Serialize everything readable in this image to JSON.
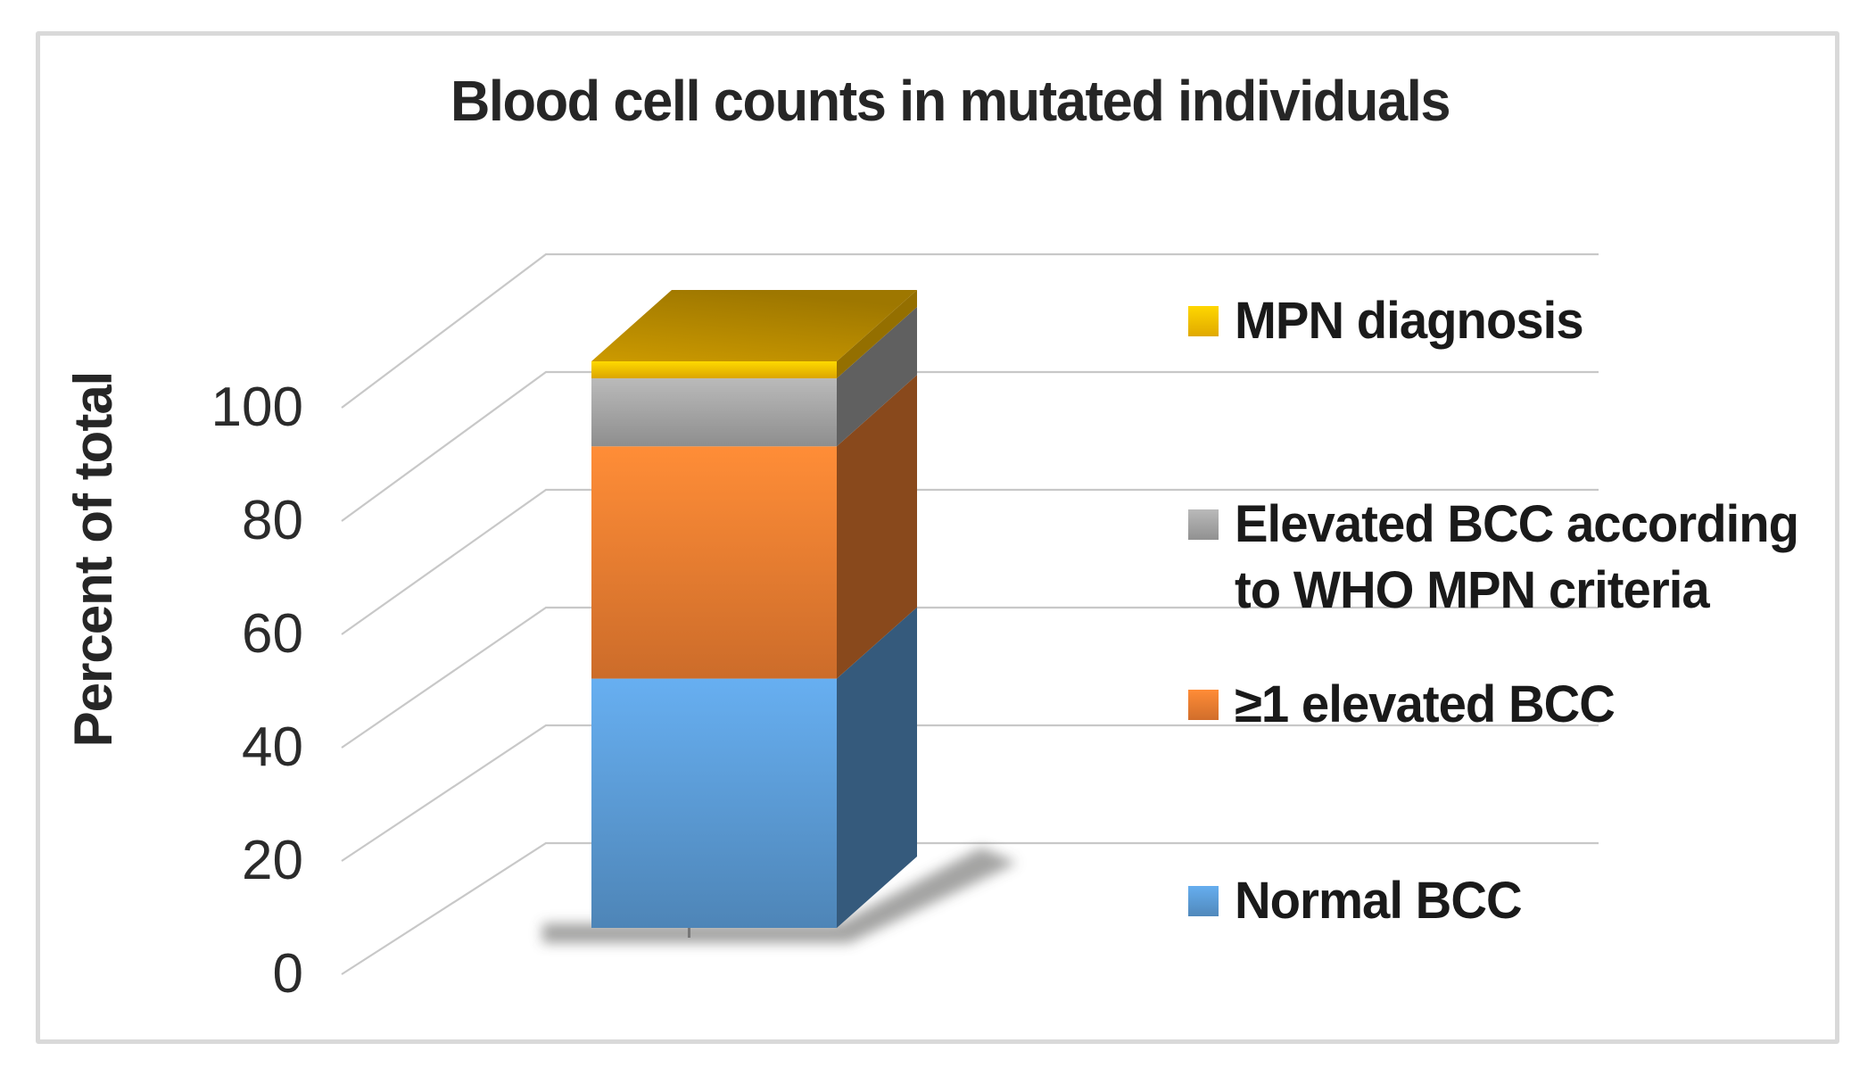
{
  "chart_title": "Blood cell counts in mutated individuals",
  "y_axis": {
    "title": "Percent of total",
    "tick_labels": [
      "0",
      "20",
      "40",
      "60",
      "80",
      "100"
    ],
    "tick_values": [
      0,
      20,
      40,
      60,
      80,
      100
    ]
  },
  "legend": {
    "position": "right",
    "items": [
      {
        "label": "MPN diagnosis",
        "lines": [
          "MPN diagnosis"
        ],
        "color": "#FFC000"
      },
      {
        "label": "Elevated BCC according to WHO MPN criteria",
        "lines": [
          "Elevated BCC according",
          "to WHO MPN criteria"
        ],
        "color": "#A5A5A5"
      },
      {
        "label": "≥1 elevated BCC",
        "lines": [
          "≥1 elevated BCC"
        ],
        "color": "#ED7D31"
      },
      {
        "label": "Normal BCC",
        "lines": [
          "Normal BCC"
        ],
        "color": "#5B9BD5"
      }
    ]
  },
  "chart_data": {
    "type": "bar",
    "subtype": "3d-stacked-column",
    "title": "Blood cell counts in mutated individuals",
    "xlabel": "",
    "ylabel": "Percent of total",
    "ylim": [
      0,
      100
    ],
    "tick_step": 20,
    "grid": true,
    "legend_position": "right",
    "categories": [
      ""
    ],
    "series": [
      {
        "name": "Normal BCC",
        "values": [
          44
        ],
        "color": "#5B9BD5"
      },
      {
        "name": "≥1 elevated BCC",
        "values": [
          41
        ],
        "color": "#ED7D31"
      },
      {
        "name": "Elevated BCC according to WHO MPN criteria",
        "values": [
          12
        ],
        "color": "#A5A5A5"
      },
      {
        "name": "MPN diagnosis",
        "values": [
          3
        ],
        "color": "#FFC000"
      }
    ]
  },
  "frame_color": "#d9d9d9",
  "gridline_color": "#c8c8c8"
}
